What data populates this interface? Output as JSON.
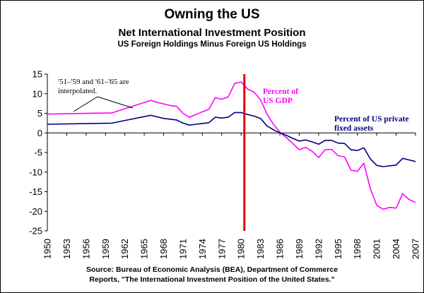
{
  "chart_data": {
    "type": "line",
    "title": "Owning the US",
    "subtitle": "Net International Investment Position",
    "subtitle2": "US Foreign Holdings Minus Foreign US Holdings",
    "xlabel": "",
    "ylabel": "",
    "xlim": [
      1950,
      2007
    ],
    "ylim": [
      -25,
      15
    ],
    "yticks": [
      15,
      10,
      5,
      0,
      -5,
      -10,
      -15,
      -20,
      -25
    ],
    "xticks": [
      1950,
      1953,
      1956,
      1959,
      1962,
      1965,
      1968,
      1971,
      1974,
      1977,
      1980,
      1983,
      1986,
      1989,
      1992,
      1995,
      1998,
      2001,
      2004,
      2007
    ],
    "grid": false,
    "legend": "none",
    "marker_year": 1980.5,
    "marker_color": "#e00000",
    "series": [
      {
        "name": "Percent of US GDP",
        "color": "#ff00ff",
        "x": [
          1950,
          1960,
          1966,
          1967,
          1968,
          1969,
          1970,
          1971,
          1972,
          1973,
          1974,
          1975,
          1976,
          1977,
          1978,
          1979,
          1980,
          1981,
          1982,
          1983,
          1984,
          1985,
          1986,
          1987,
          1988,
          1989,
          1990,
          1991,
          1992,
          1993,
          1994,
          1995,
          1996,
          1997,
          1998,
          1999,
          2000,
          2001,
          2002,
          2003,
          2004,
          2005,
          2006,
          2007
        ],
        "values": [
          4.8,
          5.1,
          8.3,
          7.8,
          7.4,
          7.0,
          6.8,
          5.0,
          4.0,
          4.7,
          5.4,
          6.0,
          9.0,
          8.6,
          9.2,
          12.6,
          13.0,
          11.2,
          10.4,
          8.5,
          4.8,
          2.2,
          0.2,
          -1.2,
          -2.7,
          -4.3,
          -3.7,
          -4.7,
          -6.3,
          -4.3,
          -4.2,
          -5.8,
          -6.1,
          -9.5,
          -9.8,
          -7.7,
          -14.2,
          -18.5,
          -19.5,
          -19.0,
          -19.2,
          -15.5,
          -17.0,
          -17.7
        ]
      },
      {
        "name": "Percent of US private fixed assets",
        "color": "#000080",
        "x": [
          1950,
          1960,
          1966,
          1967,
          1968,
          1969,
          1970,
          1971,
          1972,
          1973,
          1974,
          1975,
          1976,
          1977,
          1978,
          1979,
          1980,
          1981,
          1982,
          1983,
          1984,
          1985,
          1986,
          1987,
          1988,
          1989,
          1990,
          1991,
          1992,
          1993,
          1994,
          1995,
          1996,
          1997,
          1998,
          1999,
          2000,
          2001,
          2002,
          2003,
          2004,
          2005,
          2006,
          2007
        ],
        "values": [
          2.2,
          2.5,
          4.5,
          4.1,
          3.7,
          3.5,
          3.3,
          2.5,
          2.0,
          2.2,
          2.4,
          2.6,
          4.0,
          3.8,
          4.0,
          5.2,
          5.2,
          4.7,
          4.3,
          3.7,
          1.8,
          0.8,
          0.0,
          -0.6,
          -1.4,
          -2.1,
          -1.8,
          -2.3,
          -2.9,
          -1.9,
          -1.9,
          -2.6,
          -2.7,
          -4.3,
          -4.5,
          -3.8,
          -6.6,
          -8.3,
          -8.6,
          -8.4,
          -8.2,
          -6.5,
          -6.9,
          -7.3
        ]
      }
    ],
    "annotations": {
      "gdp_label": [
        "Percent of",
        "US GDP"
      ],
      "assets_label": [
        "Percent of US private",
        "fixed assets"
      ],
      "interp_note": [
        "'51–'59 and '61–'65 are",
        "interpolated."
      ]
    },
    "source": {
      "line1": "Source: Bureau of Economic Analysis (BEA), Department of Commerce",
      "line2": "Reports, \"The International Investment Position of the United States.\""
    }
  }
}
